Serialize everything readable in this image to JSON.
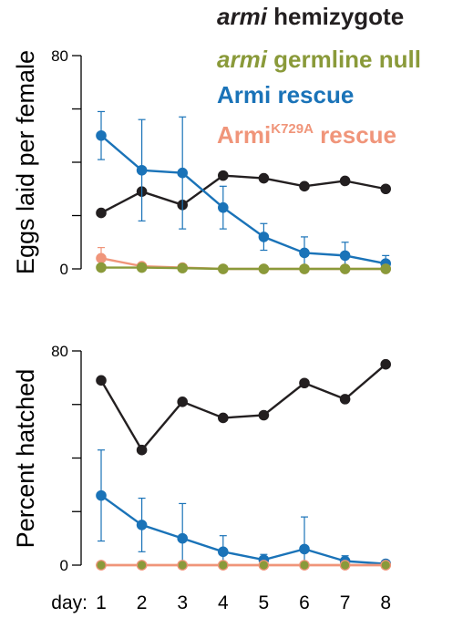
{
  "chart_data": [
    {
      "type": "line",
      "ylabel": "Eggs laid per female",
      "ylim": [
        0,
        80
      ],
      "yticks": [
        0,
        80
      ],
      "x": [
        1,
        2,
        3,
        4,
        5,
        6,
        7,
        8
      ],
      "legend_position": "top-right",
      "legend": [
        {
          "italic": "armi",
          "rest": " hemizygote",
          "color": "#231f20"
        },
        {
          "italic": "armi",
          "rest": " germline null",
          "color": "#8a9a3a"
        },
        {
          "text": "Armi rescue",
          "color": "#1a73b8"
        },
        {
          "text": "Armi",
          "sup": "K729A",
          "rest": " rescue",
          "color": "#f0957a"
        }
      ],
      "series": [
        {
          "key": "hemizygote",
          "color": "#231f20",
          "fill": "#231f20",
          "values": [
            21,
            29,
            24,
            35,
            34,
            31,
            33,
            30
          ],
          "errors": null
        },
        {
          "key": "rescue",
          "color": "#1a73b8",
          "fill": "#1a73b8",
          "values": [
            50,
            37,
            36,
            23,
            12,
            6,
            5,
            2
          ],
          "errors": [
            9,
            19,
            21,
            8,
            5,
            6,
            5,
            3
          ]
        },
        {
          "key": "k729a",
          "color": "#f0957a",
          "fill": "#f0957a",
          "values": [
            4,
            1,
            0.5,
            0,
            0,
            0,
            0,
            0
          ],
          "errors": [
            4,
            0.5,
            0,
            0,
            0,
            0,
            0,
            0
          ]
        },
        {
          "key": "germline_null",
          "color": "#8a9a3a",
          "fill": "#8a9a3a",
          "values": [
            0.5,
            0.5,
            0.3,
            0,
            0,
            0,
            0,
            0
          ],
          "errors": null
        }
      ]
    },
    {
      "type": "line",
      "ylabel": "Percent hatched",
      "ylim": [
        0,
        80
      ],
      "yticks": [
        0,
        80
      ],
      "x": [
        1,
        2,
        3,
        4,
        5,
        6,
        7,
        8
      ],
      "xlabel_prefix": "day:",
      "xtick_labels": [
        "1",
        "2",
        "3",
        "4",
        "5",
        "6",
        "7",
        "8"
      ],
      "series": [
        {
          "key": "hemizygote",
          "color": "#231f20",
          "fill": "#231f20",
          "values": [
            69,
            43,
            61,
            55,
            56,
            68,
            62,
            75
          ],
          "errors": null
        },
        {
          "key": "rescue",
          "color": "#1a73b8",
          "fill": "#1a73b8",
          "values": [
            26,
            15,
            10,
            5,
            2,
            6,
            1.5,
            0.5
          ],
          "errors": [
            17,
            10,
            13,
            6,
            2,
            12,
            2,
            0.5
          ]
        },
        {
          "key": "k729a",
          "color": "#f0957a",
          "fill": "#f0957a",
          "values": [
            0,
            0,
            0,
            0,
            0,
            0,
            0,
            0
          ],
          "errors": null
        },
        {
          "key": "germline_null",
          "color": "#f0957a",
          "fill": "#8a9a3a",
          "values": [
            0,
            0,
            0,
            0,
            0,
            0,
            0,
            0
          ],
          "errors": null
        }
      ]
    }
  ]
}
